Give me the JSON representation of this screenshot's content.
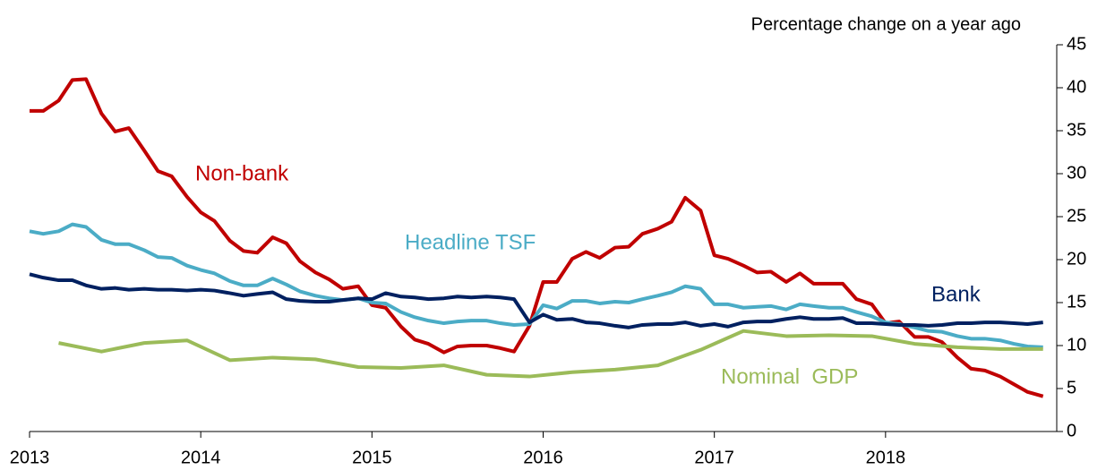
{
  "chart_data": {
    "type": "line",
    "y_axis_label": "Percentage change on a year ago",
    "x": [
      2013.0,
      2013.08,
      2013.17,
      2013.25,
      2013.33,
      2013.42,
      2013.5,
      2013.58,
      2013.67,
      2013.75,
      2013.83,
      2013.92,
      2014.0,
      2014.08,
      2014.17,
      2014.25,
      2014.33,
      2014.42,
      2014.5,
      2014.58,
      2014.67,
      2014.75,
      2014.83,
      2014.92,
      2015.0,
      2015.08,
      2015.17,
      2015.25,
      2015.33,
      2015.42,
      2015.5,
      2015.58,
      2015.67,
      2015.75,
      2015.83,
      2015.92,
      2016.0,
      2016.08,
      2016.17,
      2016.25,
      2016.33,
      2016.42,
      2016.5,
      2016.58,
      2016.67,
      2016.75,
      2016.83,
      2016.92,
      2017.0,
      2017.08,
      2017.17,
      2017.25,
      2017.33,
      2017.42,
      2017.5,
      2017.58,
      2017.67,
      2017.75,
      2017.83,
      2017.92,
      2018.0,
      2018.08,
      2018.17,
      2018.25,
      2018.33,
      2018.42,
      2018.5,
      2018.58,
      2018.67,
      2018.75,
      2018.83,
      2018.92
    ],
    "series": [
      {
        "name": "Non-bank",
        "color": "#c00000",
        "values": [
          37.3,
          37.3,
          38.5,
          40.9,
          41,
          37,
          34.9,
          35.3,
          32.7,
          30.3,
          29.7,
          27.3,
          25.5,
          24.5,
          22.2,
          21,
          20.8,
          22.6,
          21.9,
          19.8,
          18.5,
          17.7,
          16.6,
          16.9,
          14.7,
          14.4,
          12.2,
          10.7,
          10.2,
          9.2,
          9.9,
          10,
          10,
          9.7,
          9.3,
          12.3,
          17.4,
          17.4,
          20.1,
          20.9,
          20.2,
          21.4,
          21.5,
          23,
          23.6,
          24.4,
          27.2,
          25.7,
          20.5,
          20.1,
          19.3,
          18.5,
          18.6,
          17.4,
          18.4,
          17.2,
          17.2,
          17.2,
          15.4,
          14.8,
          12.6,
          12.8,
          11,
          11,
          10.4,
          8.6,
          7.3,
          7.1,
          6.4,
          5.5,
          4.6,
          4.1
        ]
      },
      {
        "name": "Headline TSF",
        "color": "#4bacc6",
        "values": [
          23.3,
          23,
          23.3,
          24.1,
          23.8,
          22.3,
          21.8,
          21.8,
          21.1,
          20.3,
          20.2,
          19.3,
          18.8,
          18.4,
          17.5,
          17,
          17,
          17.8,
          17.1,
          16.3,
          15.8,
          15.5,
          15.3,
          15.5,
          15,
          14.9,
          13.9,
          13.3,
          12.9,
          12.6,
          12.8,
          12.9,
          12.9,
          12.6,
          12.4,
          12.5,
          14.7,
          14.3,
          15.2,
          15.2,
          14.9,
          15.1,
          15,
          15.4,
          15.8,
          16.2,
          16.9,
          16.6,
          14.8,
          14.8,
          14.4,
          14.5,
          14.6,
          14.2,
          14.8,
          14.6,
          14.4,
          14.4,
          13.9,
          13.4,
          12.7,
          12.5,
          12.1,
          11.7,
          11.6,
          11.1,
          10.8,
          10.8,
          10.6,
          10.2,
          9.9,
          9.8
        ]
      },
      {
        "name": "Bank",
        "color": "#002060",
        "values": [
          18.3,
          17.9,
          17.6,
          17.6,
          17,
          16.6,
          16.7,
          16.5,
          16.6,
          16.5,
          16.5,
          16.4,
          16.5,
          16.4,
          16.1,
          15.8,
          16,
          16.2,
          15.4,
          15.2,
          15.1,
          15.1,
          15.3,
          15.5,
          15.4,
          16.1,
          15.7,
          15.6,
          15.4,
          15.5,
          15.7,
          15.6,
          15.7,
          15.6,
          15.4,
          12.7,
          13.6,
          13,
          13.1,
          12.7,
          12.6,
          12.3,
          12.1,
          12.4,
          12.5,
          12.5,
          12.7,
          12.3,
          12.5,
          12.2,
          12.7,
          12.8,
          12.8,
          13.1,
          13.3,
          13.1,
          13.1,
          13.2,
          12.6,
          12.6,
          12.5,
          12.4,
          12.4,
          12.3,
          12.4,
          12.6,
          12.6,
          12.7,
          12.7,
          12.6,
          12.5,
          12.7
        ]
      },
      {
        "name": "Nominal  GDP",
        "color": "#9bbb59",
        "x": [
          2013.17,
          2013.42,
          2013.67,
          2013.92,
          2014.17,
          2014.42,
          2014.67,
          2014.92,
          2015.17,
          2015.42,
          2015.67,
          2015.92,
          2016.17,
          2016.42,
          2016.67,
          2016.92,
          2017.17,
          2017.42,
          2017.67,
          2017.92,
          2018.17,
          2018.42,
          2018.67,
          2018.92
        ],
        "values": [
          10.3,
          9.3,
          10.3,
          10.6,
          8.3,
          8.6,
          8.4,
          7.5,
          7.4,
          7.7,
          6.6,
          6.4,
          6.9,
          7.2,
          7.7,
          9.5,
          11.7,
          11.1,
          11.2,
          11.1,
          10.2,
          9.8,
          9.6,
          9.6
        ]
      }
    ],
    "xlim": [
      2013,
      2019
    ],
    "xticks": [
      2013,
      2014,
      2015,
      2016,
      2017,
      2018
    ],
    "ylim": [
      0,
      45
    ],
    "yticks": [
      0,
      5,
      10,
      15,
      20,
      25,
      30,
      35,
      40,
      45
    ]
  }
}
